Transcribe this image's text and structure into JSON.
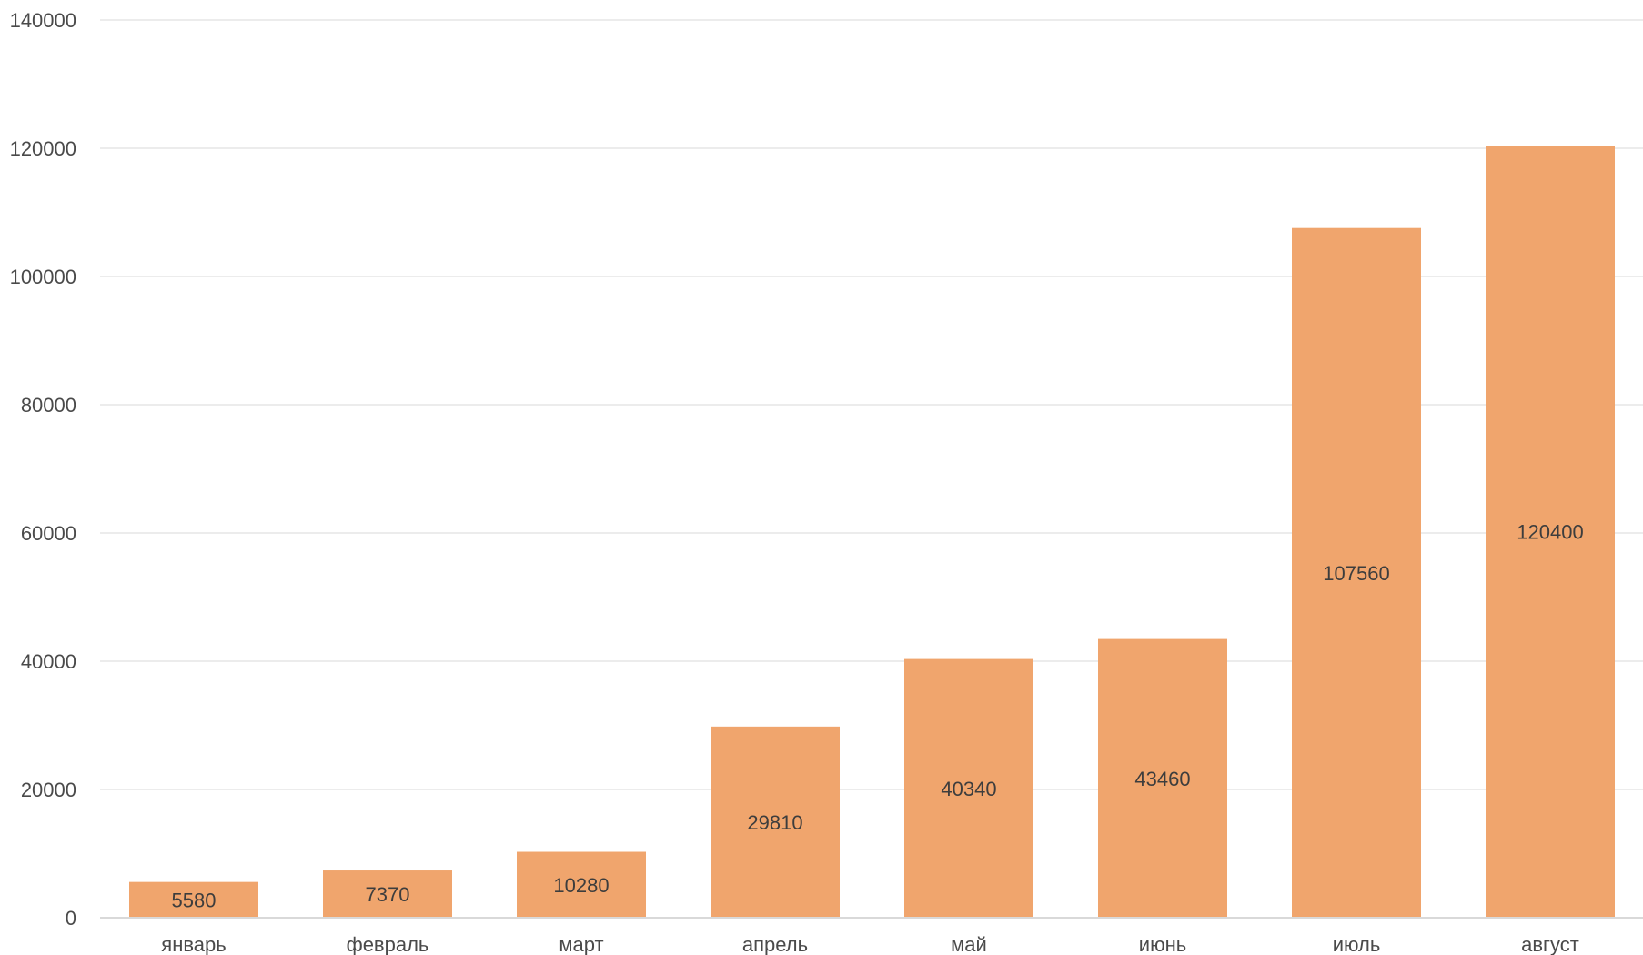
{
  "chart_data": {
    "type": "bar",
    "title": "",
    "categories": [
      "январь",
      "февраль",
      "март",
      "апрель",
      "май",
      "июнь",
      "июль",
      "август"
    ],
    "values": [
      5580,
      7370,
      10280,
      29810,
      40340,
      43460,
      107560,
      120400
    ],
    "data_labels": [
      "5580",
      "7370",
      "10280",
      "29810",
      "40340",
      "43460",
      "107560",
      "120400"
    ],
    "ylim": [
      0,
      140000
    ],
    "yticks": [
      0,
      20000,
      40000,
      60000,
      80000,
      100000,
      120000,
      140000
    ],
    "ytick_labels": [
      "0",
      "20000",
      "40000",
      "60000",
      "80000",
      "100000",
      "120000",
      "140000"
    ],
    "xlabel": "",
    "ylabel": "",
    "grid": true,
    "legend": false,
    "colors": {
      "bar": "#F0A56D",
      "grid": "#E6E6E6",
      "axis": "#D9D9D9",
      "text": "#4A4A4A"
    }
  }
}
